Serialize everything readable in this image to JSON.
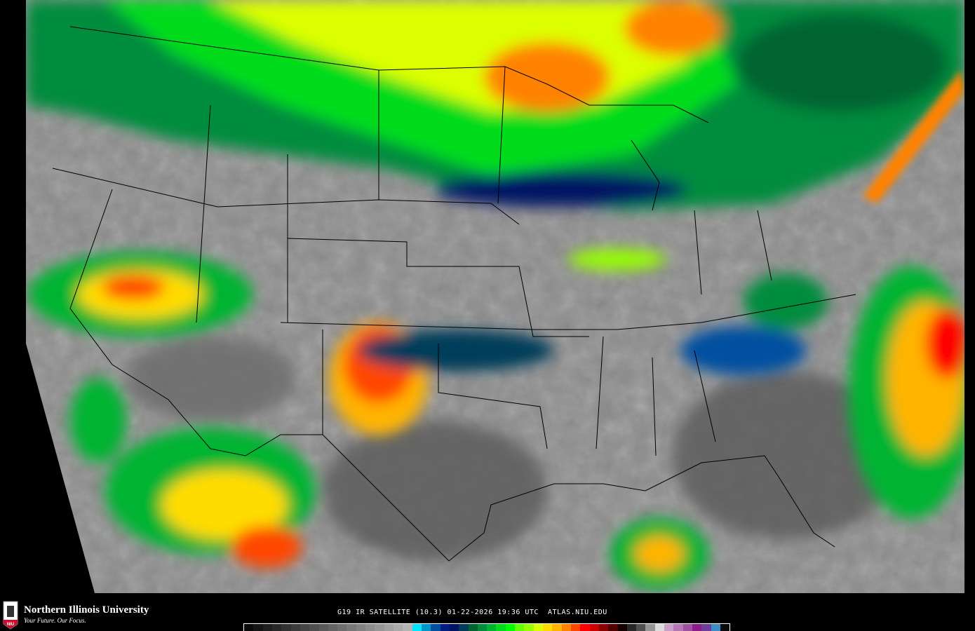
{
  "branding": {
    "logo_text": "NIU",
    "university": "Northern Illinois University",
    "tagline": "Your Future. Our Focus."
  },
  "caption": {
    "satellite": "G19 IR SATELLITE (10.3)",
    "date": "01-22-2026",
    "time": "19:36 UTC",
    "site": "ATLAS.NIU.EDU"
  },
  "colors": {
    "background": "#000000",
    "land_gray": "#8c8c8c",
    "borders": "#000000",
    "logo_red": "#c8102e"
  },
  "colorbar": [
    "#0a0a0a",
    "#141414",
    "#1e1e1e",
    "#282828",
    "#323232",
    "#3c3c3c",
    "#464646",
    "#505050",
    "#5a5a5a",
    "#646464",
    "#6e6e6e",
    "#787878",
    "#828282",
    "#8c8c8c",
    "#969696",
    "#a0a0a0",
    "#aaaaaa",
    "#b4b4b4",
    "#00e5ff",
    "#0096c8",
    "#0050a0",
    "#001e82",
    "#001464",
    "#003c5a",
    "#006432",
    "#008c3c",
    "#00b432",
    "#00dc1e",
    "#00ff00",
    "#64ff00",
    "#96ff00",
    "#dcff00",
    "#ffdc00",
    "#ffb400",
    "#ff8200",
    "#ff4600",
    "#ff0000",
    "#c80000",
    "#8c0000",
    "#500000",
    "#140000",
    "#282828",
    "#505050",
    "#969696",
    "#dcdcdc",
    "#c8a0c8",
    "#b478b4",
    "#a050a0",
    "#8c1e8c",
    "#6e3c9b",
    "#3c8cc8",
    "#0a0a0a"
  ]
}
